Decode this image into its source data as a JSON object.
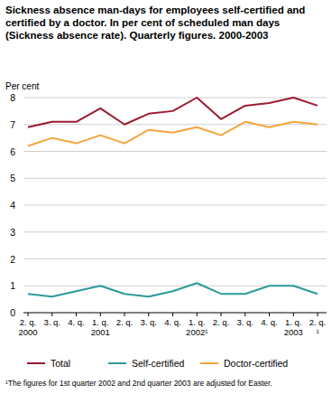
{
  "chart_data": {
    "type": "line",
    "title": "Sickness absence man-days for employees self-certified and certified by a doctor. In per cent of scheduled man days (Sickness absence rate). Quarterly figures. 2000-2003",
    "y_label": "Per cent",
    "categories": [
      "2. q.\n2000",
      "3. q.",
      "4. q.",
      "1. q.\n2001",
      "2. q.",
      "3. q.",
      "4. q.",
      "1. q.\n2002¹",
      "2. q.",
      "3. q.",
      "4. q.",
      "1. q.\n2003",
      "2. q.\n¹"
    ],
    "series": [
      {
        "name": "Total",
        "color": "#9b1b30",
        "values": [
          6.9,
          7.1,
          7.1,
          7.6,
          7.0,
          7.4,
          7.5,
          8.0,
          7.2,
          7.7,
          7.8,
          8.0,
          7.7
        ]
      },
      {
        "name": "Self-certified",
        "color": "#2a9b9a",
        "values": [
          0.7,
          0.6,
          0.8,
          1.0,
          0.7,
          0.6,
          0.8,
          1.1,
          0.7,
          0.7,
          1.0,
          1.0,
          0.7
        ]
      },
      {
        "name": "Doctor-certified",
        "color": "#f5a43c",
        "values": [
          6.2,
          6.5,
          6.3,
          6.6,
          6.3,
          6.8,
          6.7,
          6.9,
          6.6,
          7.1,
          6.9,
          7.1,
          7.0
        ]
      }
    ],
    "ylim": [
      0,
      8
    ],
    "yticks": [
      0,
      1,
      2,
      3,
      4,
      5,
      6,
      7,
      8
    ],
    "grid": true,
    "legend": "bottom",
    "footnote": "¹The figures for 1st quarter 2002 and 2nd quarter 2003 are adjusted for Easter."
  }
}
